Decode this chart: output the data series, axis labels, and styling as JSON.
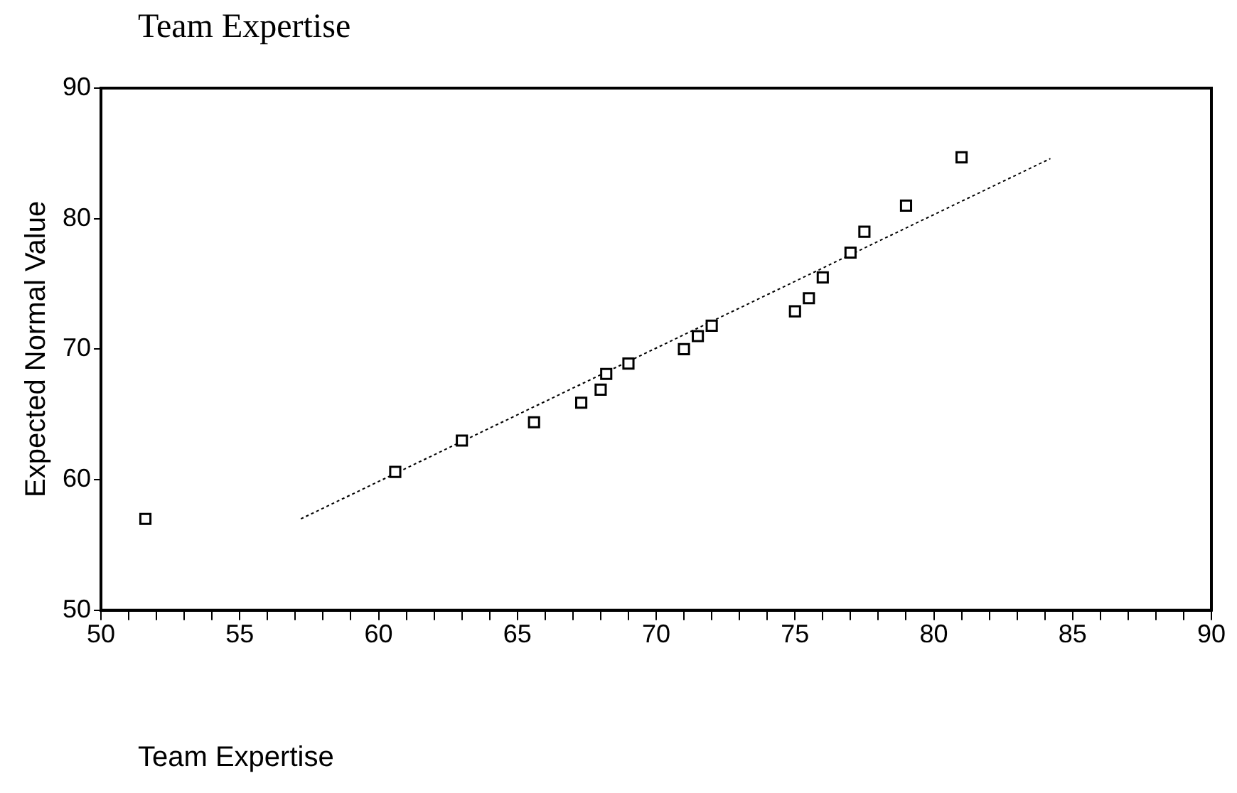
{
  "chart_data": {
    "type": "scatter",
    "title": "Team Expertise",
    "xlabel": "Team Expertise",
    "ylabel": "Expected Normal Value",
    "xlim": [
      50,
      90
    ],
    "ylim": [
      50,
      90
    ],
    "xticks": [
      50,
      {
        "value": 51,
        "label": null
      },
      {
        "value": 52,
        "label": null
      },
      {
        "value": 53,
        "label": null
      },
      {
        "value": 54,
        "label": null
      },
      55,
      {
        "value": 56,
        "label": null
      },
      {
        "value": 57,
        "label": null
      },
      {
        "value": 58,
        "label": null
      },
      {
        "value": 59,
        "label": null
      },
      60,
      {
        "value": 61,
        "label": null
      },
      {
        "value": 62,
        "label": null
      },
      {
        "value": 63,
        "label": null
      },
      {
        "value": 64,
        "label": null
      },
      65,
      {
        "value": 66,
        "label": null
      },
      {
        "value": 67,
        "label": null
      },
      {
        "value": 68,
        "label": null
      },
      {
        "value": 69,
        "label": null
      },
      70,
      {
        "value": 71,
        "label": null
      },
      {
        "value": 72,
        "label": null
      },
      {
        "value": 73,
        "label": null
      },
      {
        "value": 74,
        "label": null
      },
      75,
      {
        "value": 76,
        "label": null
      },
      {
        "value": 77,
        "label": null
      },
      {
        "value": 78,
        "label": null
      },
      {
        "value": 79,
        "label": null
      },
      80,
      {
        "value": 81,
        "label": null
      },
      {
        "value": 82,
        "label": null
      },
      {
        "value": 83,
        "label": null
      },
      {
        "value": 84,
        "label": null
      },
      85,
      {
        "value": 86,
        "label": null
      },
      {
        "value": 87,
        "label": null
      },
      {
        "value": 88,
        "label": null
      },
      {
        "value": 89,
        "label": null
      },
      90
    ],
    "yticks": [
      50,
      60,
      70,
      80,
      90
    ],
    "grid": false,
    "legend": false,
    "marker": "square",
    "series": [
      {
        "color": "#000000",
        "x": [
          51.6,
          60.6,
          63,
          65.6,
          67.3,
          68,
          68.2,
          69,
          71,
          71.5,
          72,
          75,
          75.5,
          76,
          77,
          77.5,
          79,
          81
        ],
        "values": [
          57,
          60.6,
          63,
          64.4,
          65.9,
          66.9,
          68.1,
          68.9,
          70,
          71,
          71.8,
          72.9,
          73.9,
          75.5,
          77.4,
          79,
          81,
          84.7
        ]
      },
      {
        "type": "line",
        "color": "#000000",
        "line_style": "dotted",
        "marker": "none",
        "x": [
          57.2,
          84.2
        ],
        "values": [
          57,
          84.6
        ]
      }
    ]
  }
}
